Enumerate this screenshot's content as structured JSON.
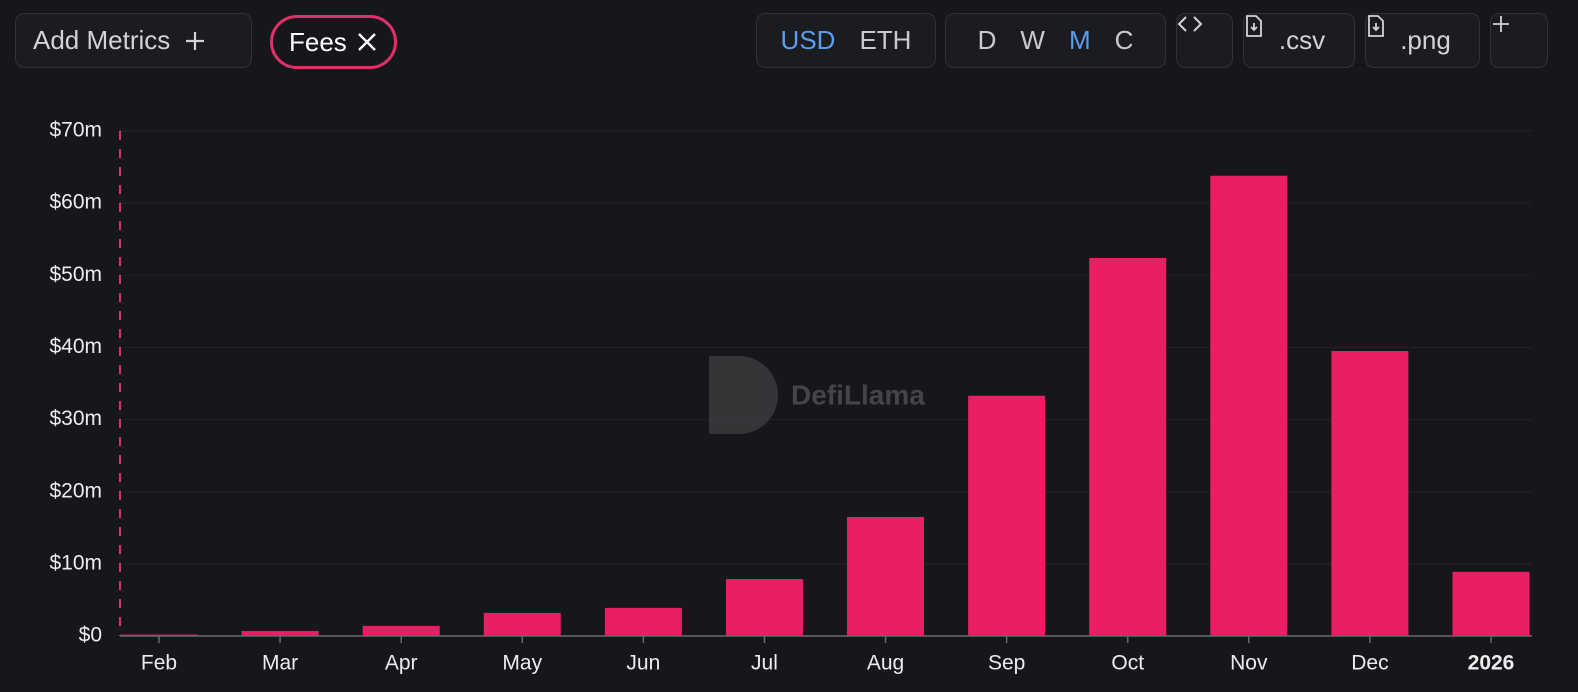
{
  "toolbar": {
    "add_metrics": "Add Metrics",
    "metric": "Fees",
    "currency": {
      "options": [
        "USD",
        "ETH"
      ],
      "active": "USD"
    },
    "interval": {
      "options": [
        "D",
        "W",
        "M",
        "C"
      ],
      "active": "M"
    },
    "csv": ".csv",
    "png": ".png"
  },
  "watermark": "DefiLlama",
  "chart_data": {
    "type": "bar",
    "categories": [
      "Feb",
      "Mar",
      "Apr",
      "May",
      "Jun",
      "Jul",
      "Aug",
      "Sep",
      "Oct",
      "Nov",
      "Dec",
      "2026"
    ],
    "values": [
      0.2,
      0.7,
      1.4,
      3.2,
      3.9,
      7.9,
      16.5,
      33.3,
      52.4,
      63.8,
      39.5,
      8.9
    ],
    "color": "#ea1f63",
    "ylim": [
      0,
      70
    ],
    "yticks": [
      {
        "value": 0,
        "label": "$0"
      },
      {
        "value": 10,
        "label": "$10m"
      },
      {
        "value": 20,
        "label": "$20m"
      },
      {
        "value": 30,
        "label": "$30m"
      },
      {
        "value": 40,
        "label": "$40m"
      },
      {
        "value": 50,
        "label": "$50m"
      },
      {
        "value": 60,
        "label": "$60m"
      },
      {
        "value": 70,
        "label": "$70m"
      }
    ],
    "grid": true
  }
}
